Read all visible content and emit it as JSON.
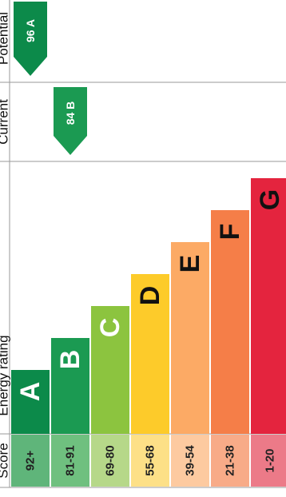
{
  "chart_data": {
    "type": "bar",
    "headers": {
      "score": "Score",
      "rating": "Energy rating",
      "current": "Current",
      "potential": "Potential"
    },
    "bands": [
      {
        "letter": "A",
        "range": "92+",
        "color": "#0c8a4a",
        "score_bg": "#5fb57a",
        "text_color": "#ffffff"
      },
      {
        "letter": "B",
        "range": "81-91",
        "color": "#1b9a52",
        "score_bg": "#6fc07f",
        "text_color": "#ffffff"
      },
      {
        "letter": "C",
        "range": "69-80",
        "color": "#8cc43f",
        "score_bg": "#b6d889",
        "text_color": "#ffffff"
      },
      {
        "letter": "D",
        "range": "55-68",
        "color": "#fdcb2a",
        "score_bg": "#fde087",
        "text_color": "#111111"
      },
      {
        "letter": "E",
        "range": "39-54",
        "color": "#fcaa65",
        "score_bg": "#fdcaa0",
        "text_color": "#111111"
      },
      {
        "letter": "F",
        "range": "21-38",
        "color": "#f57e48",
        "score_bg": "#f8ab88",
        "text_color": "#111111"
      },
      {
        "letter": "G",
        "range": "1-20",
        "color": "#e4243e",
        "score_bg": "#ec7a88",
        "text_color": "#111111"
      }
    ],
    "current": {
      "value": 84,
      "band": "B",
      "label": "84 B",
      "color": "#1b9a52"
    },
    "potential": {
      "value": 96,
      "band": "A",
      "label": "96 A",
      "color": "#0c8a4a"
    }
  }
}
